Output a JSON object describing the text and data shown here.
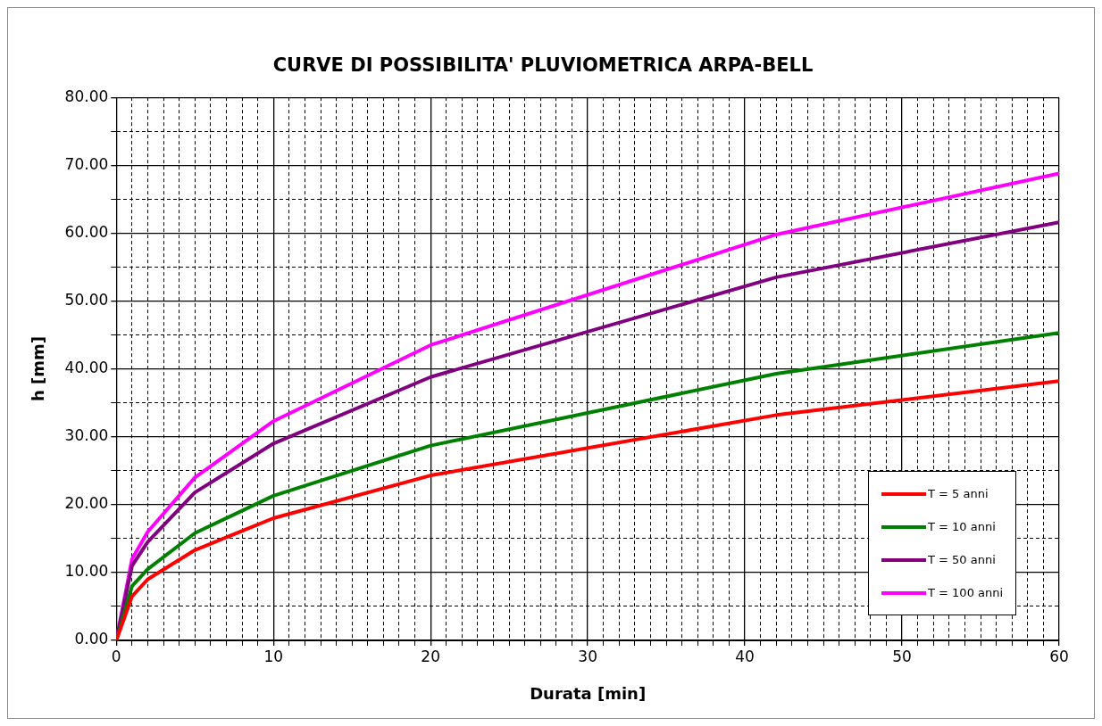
{
  "chart_data": {
    "type": "line",
    "title": "CURVE DI POSSIBILITA' PLUVIOMETRICA ARPA-BELL",
    "xlabel": "Durata [min]",
    "ylabel": "h [mm]",
    "x": [
      0,
      1,
      2,
      5,
      10,
      20,
      42,
      60
    ],
    "series": [
      {
        "name": "T = 5 anni",
        "color": "#ff0000",
        "values": [
          0,
          6.5,
          9,
          13.3,
          18,
          24.3,
          33.2,
          38.2
        ]
      },
      {
        "name": "T = 10 anni",
        "color": "#008000",
        "values": [
          0,
          8,
          10.5,
          15.8,
          21.3,
          28.7,
          39.3,
          45.3
        ]
      },
      {
        "name": "T = 50 anni",
        "color": "#800080",
        "values": [
          0,
          11,
          14.5,
          21.8,
          29,
          38.8,
          53.5,
          61.6
        ]
      },
      {
        "name": "T = 100 anni",
        "color": "#ff00ff",
        "values": [
          0,
          12,
          16,
          24,
          32.3,
          43.5,
          59.8,
          68.8
        ]
      }
    ],
    "xlim": [
      0,
      60
    ],
    "xticks": [
      0,
      {
        "value": 1,
        "label": null
      },
      {
        "value": 2,
        "label": null
      },
      {
        "value": 3,
        "label": null
      },
      {
        "value": 4,
        "label": null
      },
      {
        "value": 5,
        "label": null
      },
      {
        "value": 6,
        "label": null
      },
      {
        "value": 7,
        "label": null
      },
      {
        "value": 8,
        "label": null
      },
      {
        "value": 9,
        "label": null
      },
      10,
      {
        "value": 11,
        "label": null
      },
      {
        "value": 12,
        "label": null
      },
      {
        "value": 13,
        "label": null
      },
      {
        "value": 14,
        "label": null
      },
      {
        "value": 15,
        "label": null
      },
      {
        "value": 16,
        "label": null
      },
      {
        "value": 17,
        "label": null
      },
      {
        "value": 18,
        "label": null
      },
      {
        "value": 19,
        "label": null
      },
      20,
      {
        "value": 21,
        "label": null
      },
      {
        "value": 22,
        "label": null
      },
      {
        "value": 23,
        "label": null
      },
      {
        "value": 24,
        "label": null
      },
      {
        "value": 25,
        "label": null
      },
      {
        "value": 26,
        "label": null
      },
      {
        "value": 27,
        "label": null
      },
      {
        "value": 28,
        "label": null
      },
      {
        "value": 29,
        "label": null
      },
      30,
      {
        "value": 31,
        "label": null
      },
      {
        "value": 32,
        "label": null
      },
      {
        "value": 33,
        "label": null
      },
      {
        "value": 34,
        "label": null
      },
      {
        "value": 35,
        "label": null
      },
      {
        "value": 36,
        "label": null
      },
      {
        "value": 37,
        "label": null
      },
      {
        "value": 38,
        "label": null
      },
      {
        "value": 39,
        "label": null
      },
      40,
      {
        "value": 41,
        "label": null
      },
      {
        "value": 42,
        "label": null
      },
      {
        "value": 43,
        "label": null
      },
      {
        "value": 44,
        "label": null
      },
      {
        "value": 45,
        "label": null
      },
      {
        "value": 46,
        "label": null
      },
      {
        "value": 47,
        "label": null
      },
      {
        "value": 48,
        "label": null
      },
      {
        "value": 49,
        "label": null
      },
      50,
      {
        "value": 51,
        "label": null
      },
      {
        "value": 52,
        "label": null
      },
      {
        "value": 53,
        "label": null
      },
      {
        "value": 54,
        "label": null
      },
      {
        "value": 55,
        "label": null
      },
      {
        "value": 56,
        "label": null
      },
      {
        "value": 57,
        "label": null
      },
      {
        "value": 58,
        "label": null
      },
      {
        "value": 59,
        "label": null
      },
      60
    ],
    "ylim": [
      0,
      80
    ],
    "yticks": [
      {
        "value": 0,
        "label": "0.00"
      },
      {
        "value": 5,
        "label": null
      },
      {
        "value": 10,
        "label": "10.00"
      },
      {
        "value": 15,
        "label": null
      },
      {
        "value": 20,
        "label": "20.00"
      },
      {
        "value": 25,
        "label": null
      },
      {
        "value": 30,
        "label": "30.00"
      },
      {
        "value": 35,
        "label": null
      },
      {
        "value": 40,
        "label": "40.00"
      },
      {
        "value": 45,
        "label": null
      },
      {
        "value": 50,
        "label": "50.00"
      },
      {
        "value": 55,
        "label": null
      },
      {
        "value": 60,
        "label": "60.00"
      },
      {
        "value": 65,
        "label": null
      },
      {
        "value": 70,
        "label": "70.00"
      },
      {
        "value": 75,
        "label": null
      },
      {
        "value": 80,
        "label": "80.00"
      }
    ],
    "grid": true,
    "legend": "bottom right",
    "marker": "none",
    "line_style": "solid"
  }
}
